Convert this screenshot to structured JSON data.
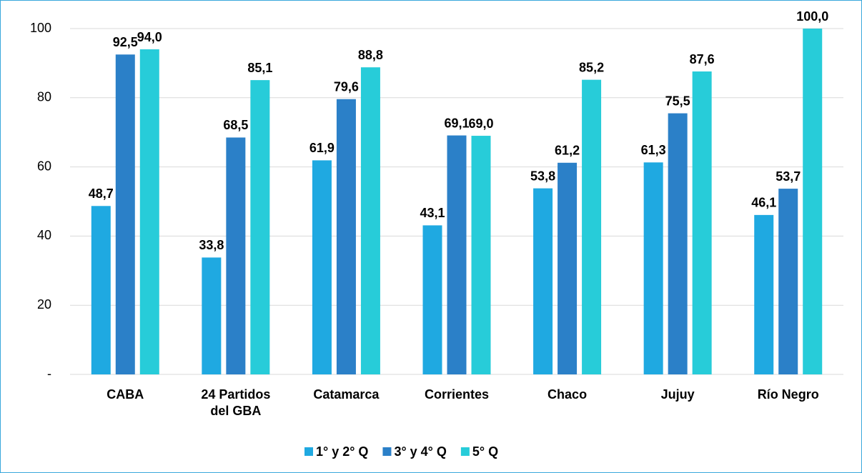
{
  "chart_data": {
    "type": "bar",
    "categories": [
      "CABA",
      "24 Partidos del GBA",
      "Catamarca",
      "Corrientes",
      "Chaco",
      "Jujuy",
      "Río Negro"
    ],
    "series": [
      {
        "name": "1° y 2° Q",
        "color": "#1fa9e1",
        "values": [
          48.7,
          33.8,
          61.9,
          43.1,
          53.8,
          61.3,
          46.1
        ],
        "value_labels": [
          "48,7",
          "33,8",
          "61,9",
          "43,1",
          "53,8",
          "61,3",
          "46,1"
        ]
      },
      {
        "name": "3° y 4° Q",
        "color": "#2b80c8",
        "values": [
          92.5,
          68.5,
          79.6,
          69.1,
          61.2,
          75.5,
          53.7
        ],
        "value_labels": [
          "92,5",
          "68,5",
          "79,6",
          "69,1",
          "61,2",
          "75,5",
          "53,7"
        ]
      },
      {
        "name": "5° Q",
        "color": "#27ccd9",
        "values": [
          94.0,
          85.1,
          88.8,
          69.0,
          85.2,
          87.6,
          100.0
        ],
        "value_labels": [
          "94,0",
          "85,1",
          "88,8",
          "69,0",
          "85,2",
          "87,6",
          "100,0"
        ]
      }
    ],
    "ylim": [
      0,
      100
    ],
    "yticks": [
      {
        "value": 0,
        "label": "-"
      },
      20,
      40,
      60,
      80,
      100
    ],
    "grid": true,
    "legend": "bottom"
  }
}
